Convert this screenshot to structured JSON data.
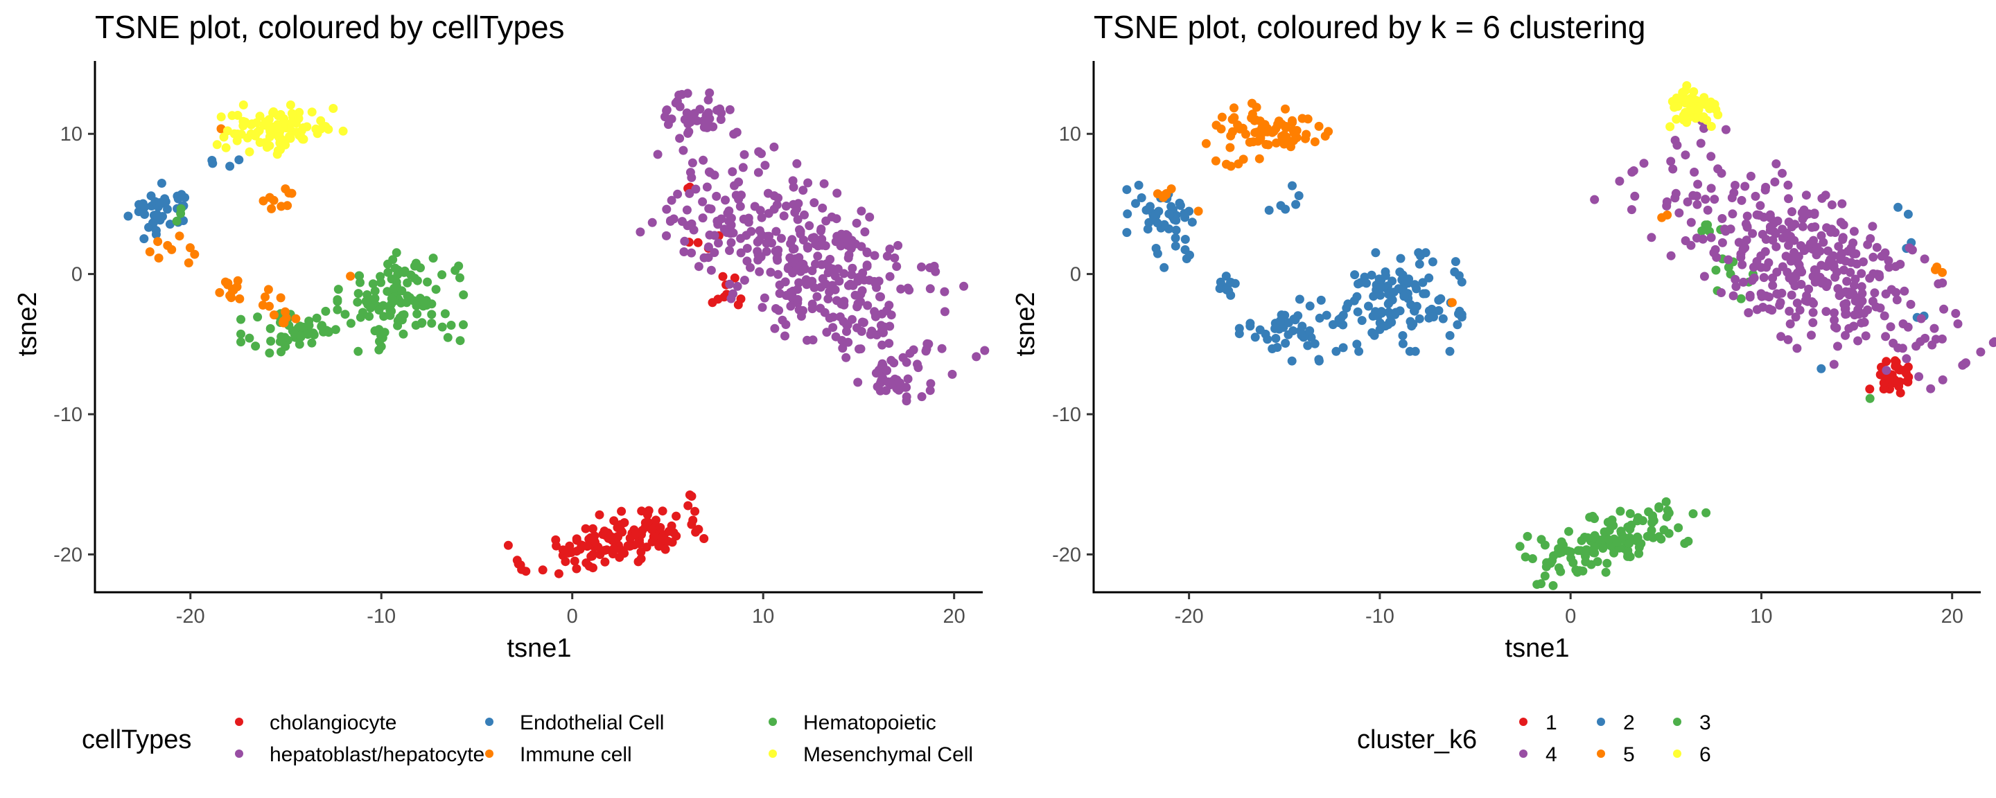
{
  "chart_data": [
    {
      "type": "scatter",
      "title": "TSNE plot, coloured by cellTypes",
      "xlabel": "tsne1",
      "ylabel": "tsne2",
      "xlim": [
        -25,
        21.5
      ],
      "ylim": [
        -22.7,
        15.2
      ],
      "xticks": [
        -20,
        -10,
        0,
        10,
        20
      ],
      "xtick_labels": [
        "-20",
        "-10",
        "0",
        "10",
        "20"
      ],
      "yticks": [
        -20,
        -10,
        0,
        10
      ],
      "ytick_labels": [
        "-20",
        "-10",
        "0",
        "10"
      ],
      "grid": false,
      "legend_position": "bottom",
      "legend_title": "cellTypes",
      "series": [
        {
          "name": "cholangiocyte",
          "color": "#E41A1C",
          "clusters": [
            {
              "center": [
                2.2,
                -19.0
              ],
              "spread": [
                2.4,
                0.9
              ],
              "rotation": 22,
              "count": 130
            },
            {
              "center": [
                8.2,
                -0.9
              ],
              "spread": [
                0.7,
                0.9
              ],
              "rotation": 0,
              "count": 9
            },
            {
              "center": [
                6.8,
                2.5
              ],
              "spread": [
                0.4,
                0.3
              ],
              "rotation": 0,
              "count": 4
            },
            {
              "center": [
                6.3,
                6.0
              ],
              "spread": [
                0.2,
                0.2
              ],
              "rotation": 0,
              "count": 2
            }
          ]
        },
        {
          "name": "Endothelial Cell",
          "color": "#377EB8",
          "clusters": [
            {
              "center": [
                -21.5,
                4.5
              ],
              "spread": [
                0.8,
                0.9
              ],
              "rotation": 0,
              "count": 40
            },
            {
              "center": [
                -18.3,
                8.0
              ],
              "spread": [
                0.5,
                0.3
              ],
              "rotation": 0,
              "count": 4
            }
          ]
        },
        {
          "name": "Hematopoietic",
          "color": "#4DAF4A",
          "clusters": [
            {
              "center": [
                -9.0,
                -2.0
              ],
              "spread": [
                1.5,
                1.6
              ],
              "rotation": 0,
              "count": 110
            },
            {
              "center": [
                -14.5,
                -4.0
              ],
              "spread": [
                1.3,
                1.0
              ],
              "rotation": 0,
              "count": 50
            },
            {
              "center": [
                -6.0,
                0.2
              ],
              "spread": [
                0.4,
                0.2
              ],
              "rotation": 0,
              "count": 2
            },
            {
              "center": [
                -20.5,
                4.3
              ],
              "spread": [
                0.3,
                0.3
              ],
              "rotation": 0,
              "count": 3
            }
          ]
        },
        {
          "name": "hepatoblast/hepatocyte",
          "color": "#984EA3",
          "clusters": [
            {
              "center": [
                12.3,
                0.8
              ],
              "spread": [
                5.0,
                2.1
              ],
              "rotation": -45,
              "count": 360
            },
            {
              "center": [
                6.5,
                11.5
              ],
              "spread": [
                0.8,
                0.8
              ],
              "rotation": 0,
              "count": 40
            },
            {
              "center": [
                16.8,
                -7.4
              ],
              "spread": [
                0.6,
                0.7
              ],
              "rotation": 0,
              "count": 35
            },
            {
              "center": [
                19.0,
                0.5
              ],
              "spread": [
                0.2,
                0.2
              ],
              "rotation": 0,
              "count": 3
            },
            {
              "center": [
                5.2,
                4.0
              ],
              "spread": [
                0.3,
                0.2
              ],
              "rotation": 0,
              "count": 2
            }
          ]
        },
        {
          "name": "Immune cell",
          "color": "#FF7F00",
          "clusters": [
            {
              "center": [
                -17.9,
                -0.9
              ],
              "spread": [
                0.4,
                0.5
              ],
              "rotation": 0,
              "count": 12
            },
            {
              "center": [
                -15.8,
                4.8
              ],
              "spread": [
                0.3,
                0.3
              ],
              "rotation": 0,
              "count": 5
            },
            {
              "center": [
                -20.8,
                2.0
              ],
              "spread": [
                0.6,
                0.7
              ],
              "rotation": 0,
              "count": 9
            },
            {
              "center": [
                -15.8,
                -2.2
              ],
              "spread": [
                0.5,
                0.5
              ],
              "rotation": 0,
              "count": 7
            },
            {
              "center": [
                -15.0,
                5.7
              ],
              "spread": [
                0.2,
                0.5
              ],
              "rotation": 0,
              "count": 4
            },
            {
              "center": [
                -15.0,
                -3.5
              ],
              "spread": [
                0.4,
                0.3
              ],
              "rotation": 0,
              "count": 5
            },
            {
              "center": [
                -18.2,
                10.8
              ],
              "spread": [
                0.2,
                0.2
              ],
              "rotation": 0,
              "count": 1
            },
            {
              "center": [
                -11.5,
                0.2
              ],
              "spread": [
                0.2,
                0.2
              ],
              "rotation": 0,
              "count": 1
            }
          ]
        },
        {
          "name": "Mesenchymal Cell",
          "color": "#FFFF33",
          "clusters": [
            {
              "center": [
                -15.3,
                10.3
              ],
              "spread": [
                1.5,
                0.8
              ],
              "rotation": 0,
              "count": 95
            }
          ]
        }
      ]
    },
    {
      "type": "scatter",
      "title": "TSNE plot, coloured by k = 6 clustering",
      "xlabel": "tsne1",
      "ylabel": "tsne2",
      "xlim": [
        -25,
        21.5
      ],
      "ylim": [
        -22.7,
        15.2
      ],
      "xticks": [
        -20,
        -10,
        0,
        10,
        20
      ],
      "xtick_labels": [
        "-20",
        "-10",
        "0",
        "10",
        "20"
      ],
      "yticks": [
        -20,
        -10,
        0,
        10
      ],
      "ytick_labels": [
        "-20",
        "-10",
        "0",
        "10"
      ],
      "grid": false,
      "legend_position": "bottom",
      "legend_title": "cluster_k6",
      "series": [
        {
          "name": "1",
          "color": "#E41A1C",
          "clusters": [
            {
              "center": [
                16.8,
                -7.4
              ],
              "spread": [
                0.6,
                0.7
              ],
              "rotation": 0,
              "count": 35
            }
          ]
        },
        {
          "name": "2",
          "color": "#377EB8",
          "clusters": [
            {
              "center": [
                -9.0,
                -2.0
              ],
              "spread": [
                1.5,
                1.6
              ],
              "rotation": 0,
              "count": 110
            },
            {
              "center": [
                -14.5,
                -4.0
              ],
              "spread": [
                1.3,
                1.0
              ],
              "rotation": 0,
              "count": 50
            },
            {
              "center": [
                -21.5,
                4.5
              ],
              "spread": [
                0.8,
                0.9
              ],
              "rotation": 0,
              "count": 40
            },
            {
              "center": [
                -17.9,
                -0.9
              ],
              "spread": [
                0.4,
                0.5
              ],
              "rotation": 0,
              "count": 12
            },
            {
              "center": [
                -20.8,
                2.0
              ],
              "spread": [
                0.6,
                0.7
              ],
              "rotation": 0,
              "count": 9
            },
            {
              "center": [
                -15.0,
                5.2
              ],
              "spread": [
                0.4,
                0.5
              ],
              "rotation": 0,
              "count": 6
            },
            {
              "center": [
                17.5,
                3.0
              ],
              "spread": [
                0.3,
                0.8
              ],
              "rotation": 0,
              "count": 4
            },
            {
              "center": [
                18.5,
                -3.0
              ],
              "spread": [
                0.3,
                0.2
              ],
              "rotation": 0,
              "count": 2
            },
            {
              "center": [
                13.0,
                -6.8
              ],
              "spread": [
                0.2,
                0.2
              ],
              "rotation": 0,
              "count": 1
            },
            {
              "center": [
                -6.0,
                0.2
              ],
              "spread": [
                0.4,
                0.2
              ],
              "rotation": 0,
              "count": 2
            }
          ]
        },
        {
          "name": "3",
          "color": "#4DAF4A",
          "clusters": [
            {
              "center": [
                2.2,
                -19.0
              ],
              "spread": [
                2.4,
                0.9
              ],
              "rotation": 22,
              "count": 130
            },
            {
              "center": [
                8.2,
                -0.9
              ],
              "spread": [
                0.7,
                0.9
              ],
              "rotation": 0,
              "count": 9
            },
            {
              "center": [
                7.2,
                3.0
              ],
              "spread": [
                0.4,
                0.6
              ],
              "rotation": 0,
              "count": 5
            },
            {
              "center": [
                15.8,
                -8.8
              ],
              "spread": [
                0.2,
                0.2
              ],
              "rotation": 0,
              "count": 1
            }
          ]
        },
        {
          "name": "4",
          "color": "#984EA3",
          "clusters": [
            {
              "center": [
                12.3,
                0.8
              ],
              "spread": [
                5.0,
                2.1
              ],
              "rotation": -45,
              "count": 360
            }
          ]
        },
        {
          "name": "5",
          "color": "#FF7F00",
          "clusters": [
            {
              "center": [
                -15.8,
                10.2
              ],
              "spread": [
                1.5,
                0.9
              ],
              "rotation": 0,
              "count": 70
            },
            {
              "center": [
                -18.0,
                8.0
              ],
              "spread": [
                0.5,
                0.3
              ],
              "rotation": 0,
              "count": 5
            },
            {
              "center": [
                -21.2,
                5.8
              ],
              "spread": [
                0.4,
                0.4
              ],
              "rotation": 0,
              "count": 6
            },
            {
              "center": [
                5.0,
                4.0
              ],
              "spread": [
                0.3,
                0.2
              ],
              "rotation": 0,
              "count": 2
            },
            {
              "center": [
                19.2,
                0.4
              ],
              "spread": [
                0.2,
                0.2
              ],
              "rotation": 0,
              "count": 3
            },
            {
              "center": [
                -6.3,
                -2.0
              ],
              "spread": [
                0.2,
                0.2
              ],
              "rotation": 0,
              "count": 1
            },
            {
              "center": [
                -19.5,
                4.8
              ],
              "spread": [
                0.2,
                0.2
              ],
              "rotation": 0,
              "count": 1
            }
          ]
        },
        {
          "name": "6",
          "color": "#FFFF33",
          "clusters": [
            {
              "center": [
                6.4,
                11.8
              ],
              "spread": [
                0.6,
                0.8
              ],
              "rotation": 0,
              "count": 50
            }
          ]
        }
      ]
    }
  ]
}
